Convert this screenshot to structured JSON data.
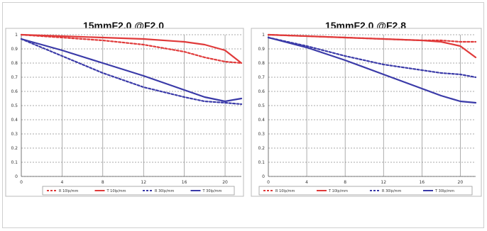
{
  "chart_data": [
    {
      "type": "line",
      "title": "15mmF2.0 @F2.0",
      "x_ticks": [
        "0",
        "4",
        "8",
        "12",
        "16",
        "20"
      ],
      "y_ticks": [
        "0",
        "0.1",
        "0.2",
        "0.3",
        "0.4",
        "0.5",
        "0.6",
        "0.7",
        "0.8",
        "0.9",
        "1"
      ],
      "xlim": [
        0,
        21.6
      ],
      "ylim": [
        0,
        1
      ],
      "grid": "horizontal dashed, vertical solid",
      "legend": "bottom",
      "series": [
        {
          "name": "R 10lp/mm",
          "color": "#e03a3a",
          "style": "dashed",
          "x": [
            0,
            4,
            8,
            12,
            16,
            18,
            20,
            21.6
          ],
          "y": [
            1.0,
            0.98,
            0.96,
            0.93,
            0.88,
            0.84,
            0.81,
            0.8
          ]
        },
        {
          "name": "T 10lp/mm",
          "color": "#e03a3a",
          "style": "solid",
          "x": [
            0,
            4,
            8,
            12,
            16,
            18,
            20,
            21.6
          ],
          "y": [
            1.0,
            0.99,
            0.98,
            0.97,
            0.95,
            0.93,
            0.89,
            0.8
          ]
        },
        {
          "name": "R 30lp/mm",
          "color": "#3a3aa8",
          "style": "dashed",
          "x": [
            0,
            4,
            8,
            12,
            16,
            18,
            20,
            21.6
          ],
          "y": [
            0.97,
            0.85,
            0.73,
            0.63,
            0.56,
            0.53,
            0.52,
            0.51
          ]
        },
        {
          "name": "T 30lp/mm",
          "color": "#3a3aa8",
          "style": "solid",
          "x": [
            0,
            4,
            8,
            12,
            16,
            18,
            20,
            21.6
          ],
          "y": [
            0.97,
            0.89,
            0.8,
            0.71,
            0.61,
            0.56,
            0.53,
            0.55
          ]
        }
      ]
    },
    {
      "type": "line",
      "title": "15mmF2.0 @F2.8",
      "x_ticks": [
        "0",
        "4",
        "8",
        "12",
        "16",
        "20"
      ],
      "y_ticks": [
        "0",
        "0.1",
        "0.2",
        "0.3",
        "0.4",
        "0.5",
        "0.6",
        "0.7",
        "0.8",
        "0.9",
        "1"
      ],
      "xlim": [
        0,
        21.6
      ],
      "ylim": [
        0,
        1
      ],
      "grid": "horizontal dashed, vertical solid",
      "legend": "bottom",
      "series": [
        {
          "name": "R 10lp/mm",
          "color": "#e03a3a",
          "style": "dashed",
          "x": [
            0,
            4,
            8,
            12,
            16,
            18,
            20,
            21.6
          ],
          "y": [
            1.0,
            0.99,
            0.98,
            0.97,
            0.96,
            0.96,
            0.95,
            0.95
          ]
        },
        {
          "name": "T 10lp/mm",
          "color": "#e03a3a",
          "style": "solid",
          "x": [
            0,
            4,
            8,
            12,
            16,
            18,
            20,
            21.6
          ],
          "y": [
            1.0,
            0.99,
            0.98,
            0.97,
            0.96,
            0.95,
            0.92,
            0.84
          ]
        },
        {
          "name": "R 30lp/mm",
          "color": "#3a3aa8",
          "style": "dashed",
          "x": [
            0,
            4,
            8,
            12,
            16,
            18,
            20,
            21.6
          ],
          "y": [
            0.98,
            0.92,
            0.85,
            0.79,
            0.75,
            0.73,
            0.72,
            0.7
          ]
        },
        {
          "name": "T 30lp/mm",
          "color": "#3a3aa8",
          "style": "solid",
          "x": [
            0,
            4,
            8,
            12,
            16,
            18,
            20,
            21.6
          ],
          "y": [
            0.98,
            0.91,
            0.82,
            0.72,
            0.62,
            0.57,
            0.53,
            0.52
          ]
        }
      ]
    }
  ]
}
